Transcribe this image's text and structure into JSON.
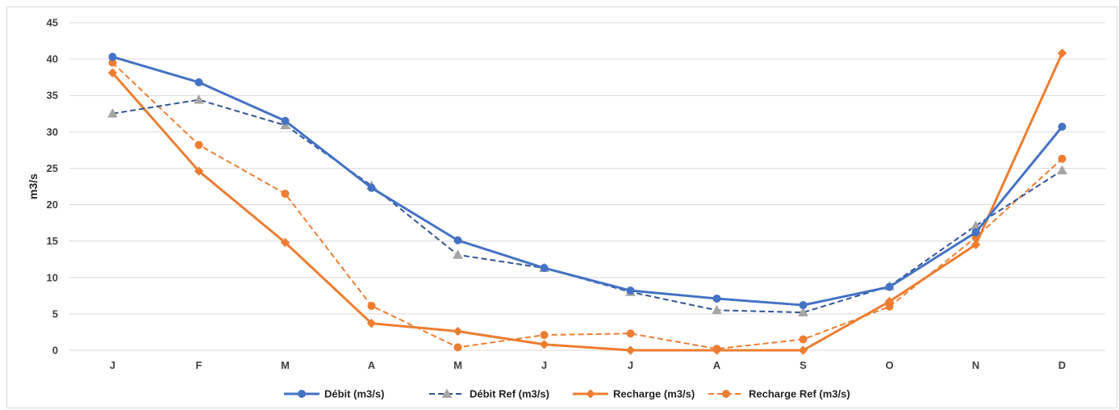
{
  "chart_data": {
    "type": "line",
    "title": "",
    "xlabel": "",
    "ylabel": "m3/s",
    "ylim": [
      0,
      45
    ],
    "yticks": [
      "0",
      "5",
      "10",
      "15",
      "20",
      "25",
      "30",
      "35",
      "40",
      "45"
    ],
    "categories": [
      "J",
      "F",
      "M",
      "A",
      "M",
      "J",
      "J",
      "A",
      "S",
      "O",
      "N",
      "D"
    ],
    "grid": true,
    "legend_position": "bottom",
    "series": [
      {
        "name": "Débit (m3/s)",
        "color": "#4472C4",
        "dash": "solid",
        "marker": "circle",
        "values": [
          40.3,
          36.8,
          31.5,
          22.3,
          15.1,
          11.3,
          8.2,
          7.1,
          6.2,
          8.7,
          16.2,
          30.7
        ]
      },
      {
        "name": "Débit Ref (m3/s)",
        "color": "#2F5597",
        "dash": "dashed",
        "marker": "triangle",
        "values": [
          32.5,
          34.4,
          30.9,
          22.6,
          13.1,
          11.3,
          8.0,
          5.5,
          5.2,
          8.8,
          17.1,
          24.7
        ]
      },
      {
        "name": "Recharge (m3/s)",
        "color": "#ED7D31",
        "dash": "solid",
        "marker": "diamond",
        "values": [
          38.1,
          24.6,
          14.8,
          3.7,
          2.6,
          0.8,
          0.0,
          0.0,
          0.0,
          6.7,
          14.5,
          40.8
        ]
      },
      {
        "name": "Recharge Ref (m3/s)",
        "color": "#ED7D31",
        "dash": "dashed",
        "marker": "circle",
        "values": [
          39.5,
          28.2,
          21.5,
          6.1,
          0.4,
          2.1,
          2.3,
          0.2,
          1.5,
          6.0,
          15.5,
          26.3
        ]
      }
    ]
  }
}
